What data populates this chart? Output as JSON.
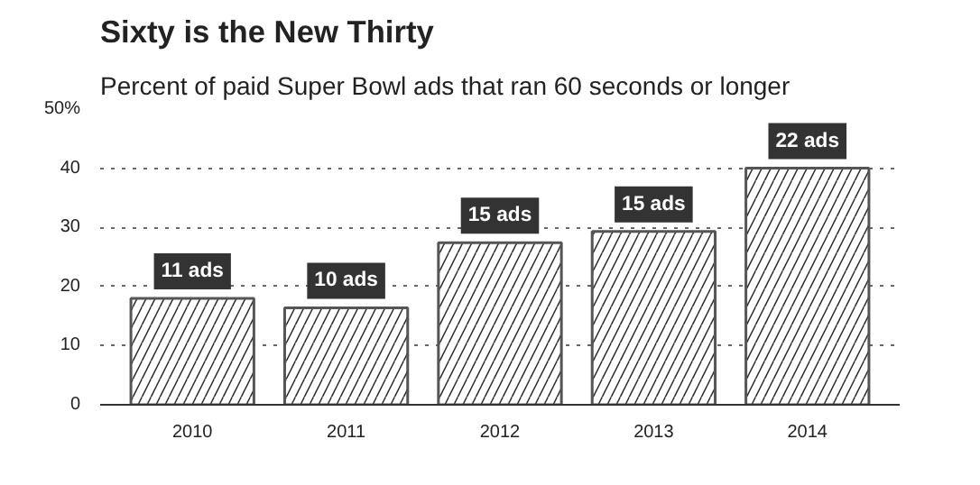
{
  "chart_data": {
    "type": "bar",
    "title": "Sixty is the New Thirty",
    "subtitle": "Percent of paid Super Bowl ads that ran 60 seconds or longer",
    "categories": [
      "2010",
      "2011",
      "2012",
      "2013",
      "2014"
    ],
    "values": [
      18,
      16.4,
      27.4,
      29.3,
      40
    ],
    "annotations": [
      {
        "text": "11 ads",
        "x": "2010",
        "y": 18
      },
      {
        "text": "10 ads",
        "x": "2011",
        "y": 16.4
      },
      {
        "text": "15 ads",
        "x": "2012",
        "y": 27.4
      },
      {
        "text": "15 ads",
        "x": "2013",
        "y": 29.3
      },
      {
        "text": "22 ads",
        "x": "2014",
        "y": 40
      }
    ],
    "color": "#ffffff",
    "ylim": [
      0,
      50
    ],
    "yticks": [
      0,
      10,
      20,
      30,
      40,
      {
        "value": 50,
        "label": "50%"
      }
    ],
    "grid": "y"
  }
}
